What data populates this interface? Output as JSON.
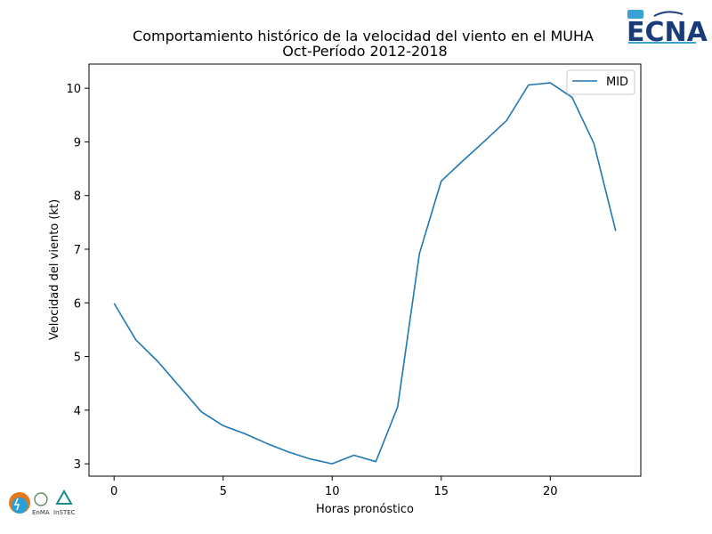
{
  "chart_data": {
    "type": "line",
    "title": "Comportamiento histórico de la velocidad del viento en el MUHA",
    "subtitle": "Oct-Período 2012-2018",
    "xlabel": "Horas pronóstico",
    "ylabel": "Velocidad del viento (kt)",
    "xlim": [
      -1.15,
      24.15
    ],
    "ylim": [
      2.77,
      10.45
    ],
    "xticks": [
      0,
      5,
      10,
      15,
      20
    ],
    "yticks": [
      3,
      4,
      5,
      6,
      7,
      8,
      9,
      10
    ],
    "grid": false,
    "legend_position": "top-right",
    "line_color": "#1f77b4",
    "series": [
      {
        "name": "MID",
        "x": [
          0,
          1,
          2,
          3,
          4,
          5,
          6,
          7,
          8,
          9,
          10,
          11,
          12,
          13,
          14,
          15,
          16,
          17,
          18,
          19,
          20,
          21,
          22,
          23
        ],
        "y": [
          5.99,
          5.31,
          4.91,
          4.44,
          3.97,
          3.71,
          3.56,
          3.38,
          3.22,
          3.09,
          3.0,
          3.16,
          3.04,
          4.06,
          6.92,
          8.27,
          8.65,
          9.02,
          9.4,
          10.06,
          10.1,
          9.83,
          8.97,
          7.34
        ]
      }
    ]
  },
  "logos": {
    "top_right": "ECNA",
    "bottom_left": [
      "EnMA",
      "InSTEC"
    ]
  }
}
